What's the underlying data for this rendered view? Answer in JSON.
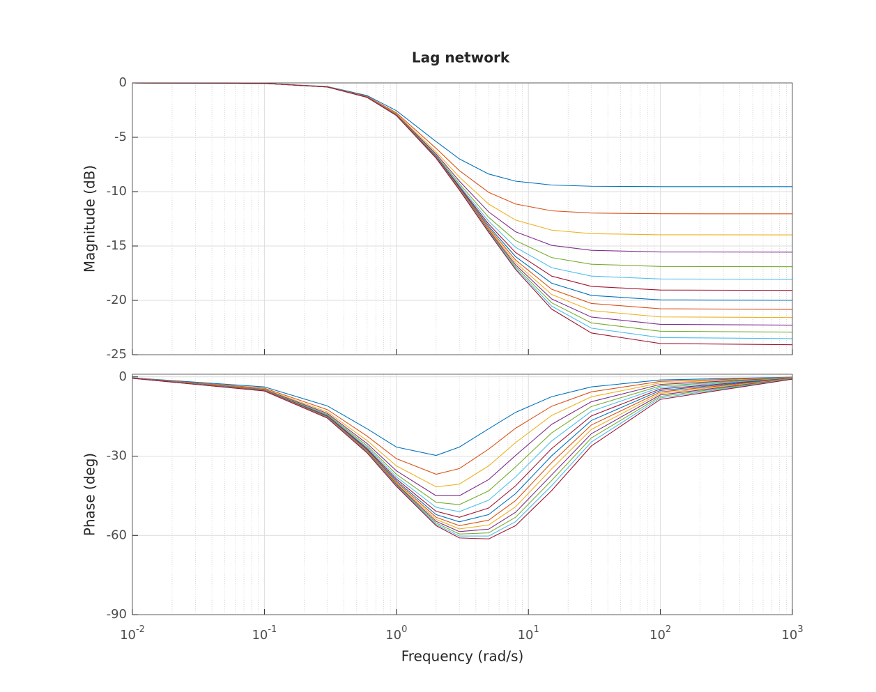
{
  "chart_data": [
    {
      "type": "line",
      "title": "Lag network",
      "y_label": "Magnitude (dB)",
      "xscale": "log",
      "grid": true,
      "minor_grid": true,
      "x": [
        0.01,
        0.1,
        0.3,
        0.6,
        1,
        2,
        3,
        5,
        8,
        15,
        30,
        100,
        1000
      ],
      "xlim": [
        0.01,
        1000
      ],
      "xticks": [
        0.01,
        0.1,
        1,
        10,
        100,
        1000
      ],
      "ylim": [
        -25,
        0
      ],
      "yticks": [
        0,
        -5,
        -10,
        -15,
        -20,
        -25
      ],
      "series": [
        {
          "color": "#0072BD",
          "values": [
            0,
            -0.04,
            -0.331,
            -1.165,
            -2.552,
            -5.393,
            -6.99,
            -8.378,
            -9.038,
            -9.391,
            -9.504,
            -9.539,
            -9.542
          ]
        },
        {
          "color": "#D95319",
          "values": [
            0,
            -0.04,
            -0.35,
            -1.238,
            -2.747,
            -6.021,
            -8.062,
            -10.063,
            -11.139,
            -11.762,
            -11.97,
            -12.034,
            -12.041
          ]
        },
        {
          "color": "#EDB120",
          "values": [
            0,
            -0.04,
            -0.358,
            -1.273,
            -2.84,
            -6.345,
            -8.665,
            -11.14,
            -12.615,
            -13.541,
            -13.865,
            -13.969,
            -13.979
          ]
        },
        {
          "color": "#7E2F8E",
          "values": [
            0,
            -0.04,
            -0.363,
            -1.292,
            -2.891,
            -6.532,
            -9.031,
            -11.86,
            -13.692,
            -14.938,
            -15.397,
            -15.547,
            -15.563
          ]
        },
        {
          "color": "#77AC30",
          "values": [
            0,
            -0.04,
            -0.366,
            -1.303,
            -2.922,
            -6.649,
            -9.268,
            -12.36,
            -14.5,
            -16.065,
            -16.676,
            -16.88,
            -16.902
          ]
        },
        {
          "color": "#4DBEEE",
          "values": [
            0,
            -0.04,
            -0.368,
            -1.311,
            -2.943,
            -6.727,
            -9.429,
            -12.718,
            -15.119,
            -16.994,
            -17.768,
            -18.034,
            -18.062
          ]
        },
        {
          "color": "#A2142F",
          "values": [
            0,
            -0.04,
            -0.369,
            -1.316,
            -2.957,
            -6.781,
            -9.542,
            -12.982,
            -15.6,
            -17.769,
            -18.715,
            -19.05,
            -19.085
          ]
        },
        {
          "color": "#0072BD",
          "values": [
            0,
            -0.04,
            -0.37,
            -1.319,
            -2.967,
            -6.82,
            -9.626,
            -13.181,
            -15.981,
            -18.422,
            -19.547,
            -19.957,
            -20
          ]
        },
        {
          "color": "#D95319",
          "values": [
            0,
            -0.04,
            -0.371,
            -1.322,
            -2.974,
            -6.849,
            -9.688,
            -13.335,
            -16.285,
            -18.978,
            -20.284,
            -20.776,
            -20.828
          ]
        },
        {
          "color": "#EDB120",
          "values": [
            0,
            -0.04,
            -0.371,
            -1.324,
            -2.98,
            -6.871,
            -9.737,
            -13.455,
            -16.532,
            -19.454,
            -20.944,
            -21.522,
            -21.584
          ]
        },
        {
          "color": "#7E2F8E",
          "values": [
            0,
            -0.04,
            -0.372,
            -1.326,
            -2.984,
            -6.888,
            -9.775,
            -13.551,
            -16.734,
            -19.865,
            -21.536,
            -22.206,
            -22.279
          ]
        },
        {
          "color": "#77AC30",
          "values": [
            0,
            -0.04,
            -0.372,
            -1.327,
            -2.988,
            -6.902,
            -9.805,
            -13.627,
            -16.902,
            -20.221,
            -22.071,
            -22.838,
            -22.923
          ]
        },
        {
          "color": "#4DBEEE",
          "values": [
            0,
            -0.04,
            -0.372,
            -1.328,
            -2.991,
            -6.914,
            -9.83,
            -13.692,
            -17.042,
            -20.531,
            -22.557,
            -23.425,
            -23.522
          ]
        },
        {
          "color": "#A2142F",
          "values": [
            0,
            -0.04,
            -0.373,
            -1.329,
            -2.993,
            -6.923,
            -9.85,
            -13.745,
            -17.16,
            -20.802,
            -23,
            -23.973,
            -24.082
          ]
        }
      ]
    },
    {
      "type": "line",
      "y_label": "Phase (deg)",
      "x_label": "Frequency  (rad/s)",
      "xscale": "log",
      "grid": true,
      "minor_grid": true,
      "x": [
        0.01,
        0.1,
        0.3,
        0.6,
        1,
        2,
        3,
        5,
        8,
        15,
        30,
        100,
        1000
      ],
      "xlim": [
        0.01,
        1000
      ],
      "xticks": [
        {
          "value": 0.01,
          "label": "10",
          "exponent": "-2"
        },
        {
          "value": 0.1,
          "label": "10",
          "exponent": "-1"
        },
        {
          "value": 1,
          "label": "10",
          "exponent": "0"
        },
        {
          "value": 10,
          "label": "10",
          "exponent": "1"
        },
        {
          "value": 100,
          "label": "10",
          "exponent": "2"
        },
        {
          "value": 1000,
          "label": "10",
          "exponent": "3"
        }
      ],
      "ylim": [
        -90,
        1
      ],
      "yticks": [
        0,
        -30,
        -60,
        -90
      ],
      "series": [
        {
          "color": "#0072BD",
          "values": [
            -0.38,
            -3.8,
            -10.99,
            -19.65,
            -26.57,
            -29.74,
            -26.57,
            -19.65,
            -13.43,
            -7.5,
            -3.8,
            -1.15,
            -0.11
          ]
        },
        {
          "color": "#D95319",
          "values": [
            -0.43,
            -4.28,
            -12.41,
            -22.43,
            -30.96,
            -36.86,
            -34.7,
            -27.35,
            -19.44,
            -11.12,
            -5.68,
            -1.72,
            -0.17
          ]
        },
        {
          "color": "#EDB120",
          "values": [
            -0.46,
            -4.57,
            -13.27,
            -24.12,
            -33.69,
            -41.63,
            -40.61,
            -33.69,
            -24.88,
            -14.62,
            -7.55,
            -2.29,
            -0.23
          ]
        },
        {
          "color": "#7E2F8E",
          "values": [
            -0.48,
            -4.76,
            -13.84,
            -25.25,
            -35.54,
            -45,
            -45,
            -38.88,
            -29.74,
            -17.99,
            -9.4,
            -2.86,
            -0.29
          ]
        },
        {
          "color": "#77AC30",
          "values": [
            -0.49,
            -4.89,
            -14.25,
            -26.06,
            -36.87,
            -47.48,
            -48.37,
            -43.15,
            -34.06,
            -21.21,
            -11.22,
            -3.44,
            -0.34
          ]
        },
        {
          "color": "#4DBEEE",
          "values": [
            -0.5,
            -5,
            -14.55,
            -26.67,
            -37.87,
            -49.39,
            -51.01,
            -46.68,
            -37.87,
            -24.26,
            -13.02,
            -4,
            -0.4
          ]
        },
        {
          "color": "#A2142F",
          "values": [
            -0.51,
            -5.07,
            -14.79,
            -27.15,
            -38.66,
            -50.9,
            -53.14,
            -49.64,
            -41.24,
            -27.15,
            -14.79,
            -4.57,
            -0.46
          ]
        },
        {
          "color": "#0072BD",
          "values": [
            -0.52,
            -5.14,
            -14.98,
            -27.53,
            -39.29,
            -52.12,
            -54.87,
            -52.12,
            -44.21,
            -29.88,
            -16.52,
            -5.14,
            -0.51
          ]
        },
        {
          "color": "#D95319",
          "values": [
            -0.52,
            -5.19,
            -15.14,
            -27.84,
            -39.81,
            -53.13,
            -56.31,
            -54.25,
            -46.84,
            -32.44,
            -18.23,
            -5.71,
            -0.57
          ]
        },
        {
          "color": "#EDB120",
          "values": [
            -0.53,
            -5.24,
            -15.27,
            -28.1,
            -40.24,
            -53.97,
            -57.53,
            -56.07,
            -49.18,
            -34.85,
            -19.89,
            -6.27,
            -0.63
          ]
        },
        {
          "color": "#7E2F8E",
          "values": [
            -0.53,
            -5.27,
            -15.38,
            -28.32,
            -40.6,
            -54.68,
            -58.57,
            -57.65,
            -51.26,
            -37.1,
            -21.52,
            -6.84,
            -0.69
          ]
        },
        {
          "color": "#77AC30",
          "values": [
            -0.53,
            -5.3,
            -15.47,
            -28.51,
            -40.91,
            -55.3,
            -59.48,
            -59.04,
            -53.13,
            -39.22,
            -23.11,
            -7.4,
            -0.74
          ]
        },
        {
          "color": "#4DBEEE",
          "values": [
            -0.53,
            -5.33,
            -15.55,
            -28.67,
            -41.19,
            -55.84,
            -60.26,
            -60.26,
            -54.8,
            -41.19,
            -24.66,
            -7.96,
            -0.8
          ]
        },
        {
          "color": "#A2142F",
          "values": [
            -0.54,
            -5.35,
            -15.63,
            -28.81,
            -41.42,
            -56.3,
            -60.95,
            -61.34,
            -56.3,
            -43.04,
            -26.16,
            -8.52,
            -0.86
          ]
        }
      ]
    }
  ]
}
